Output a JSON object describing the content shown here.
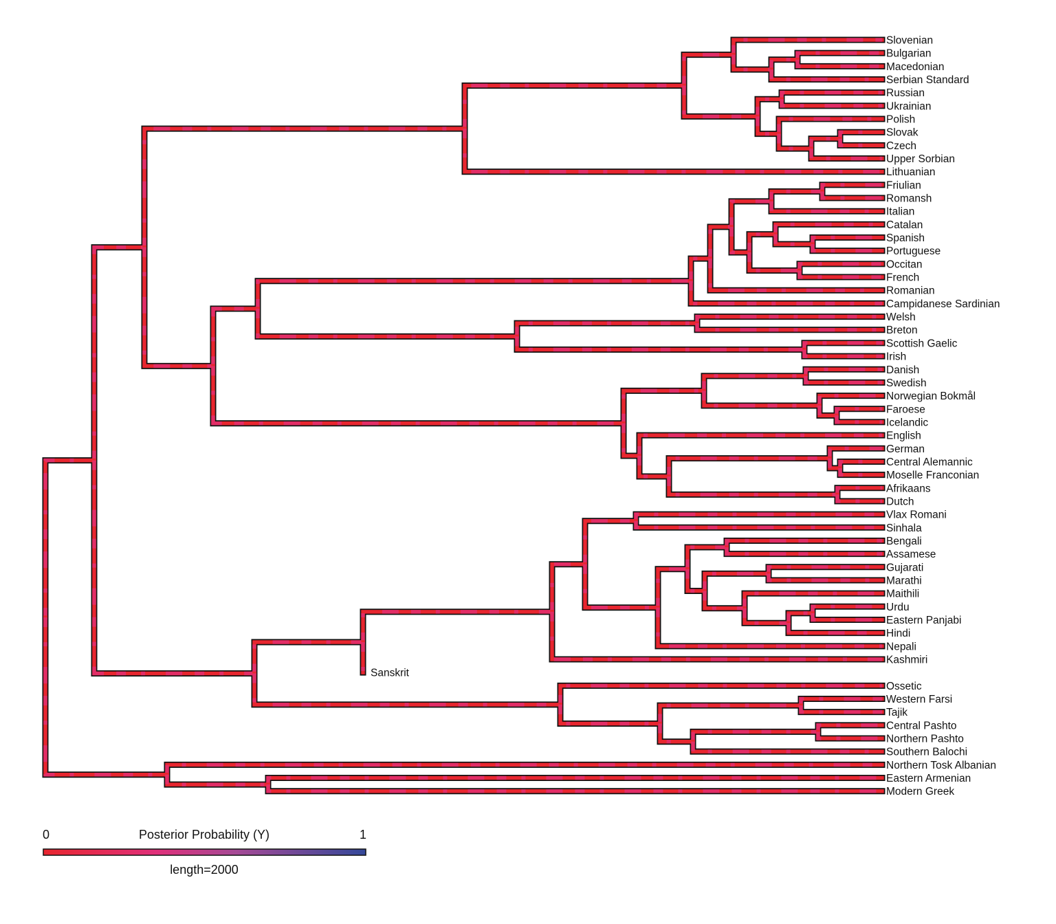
{
  "tree": [
    [
      [
        [
          [
            [
              "Slovenian",
              [
                [
                  "Bulgarian",
                  "Macedonian"
                ],
                "Serbian Standard"
              ]
            ],
            [
              [
                "Russian",
                "Ukrainian"
              ],
              [
                "Polish",
                [
                  [
                    "Slovak",
                    "Czech"
                  ],
                  "Upper Sorbian"
                ]
              ]
            ]
          ],
          "Lithuanian"
        ],
        [
          [
            [
              [
                [
                  [
                    [
                      "Friulian",
                      "Romansh"
                    ],
                    "Italian"
                  ],
                  [
                    [
                      "Catalan",
                      [
                        "Spanish",
                        "Portuguese"
                      ]
                    ],
                    [
                      "Occitan",
                      "French"
                    ]
                  ]
                ],
                "Romanian"
              ],
              "Campidanese Sardinian"
            ],
            [
              [
                "Welsh",
                "Breton"
              ],
              [
                "Scottish Gaelic",
                "Irish"
              ]
            ]
          ],
          [
            [
              [
                "Danish",
                "Swedish"
              ],
              [
                "Norwegian Bokmål",
                [
                  "Faroese",
                  "Icelandic"
                ]
              ]
            ],
            [
              "English",
              [
                [
                  "German",
                  [
                    "Central Alemannic",
                    "Moselle Franconian"
                  ]
                ],
                [
                  "Afrikaans",
                  "Dutch"
                ]
              ]
            ]
          ]
        ]
      ],
      [
        [
          [
            [
              [
                "Vlax Romani",
                "Sinhala"
              ],
              [
                [
                  [
                    "Bengali",
                    "Assamese"
                  ],
                  [
                    [
                      "Gujarati",
                      "Marathi"
                    ],
                    [
                      "Maithili",
                      [
                        [
                          "Urdu",
                          "Eastern Panjabi"
                        ],
                        "Hindi"
                      ]
                    ]
                  ]
                ],
                "Nepali"
              ]
            ],
            "Kashmiri"
          ],
          "Sanskrit"
        ],
        [
          "Ossetic",
          [
            [
              "Western Farsi",
              "Tajik"
            ],
            [
              [
                "Central Pashto",
                "Northern Pashto"
              ],
              "Southern Balochi"
            ]
          ]
        ]
      ]
    ],
    [
      "Northern Tosk Albanian",
      [
        "Eastern Armenian",
        "Modern Greek"
      ]
    ]
  ],
  "legend": {
    "title": "Posterior Probability (Y)",
    "min_label": "0",
    "max_label": "1",
    "length_label": "length=2000",
    "colors": [
      "#e8262f",
      "#e0307a",
      "#b04a9a",
      "#3a4a9a"
    ]
  },
  "colors": {
    "branch_low": "#e8262f",
    "branch_mid": "#e0307a",
    "branch_high": "#3a4a9a",
    "outline": "#111111"
  }
}
